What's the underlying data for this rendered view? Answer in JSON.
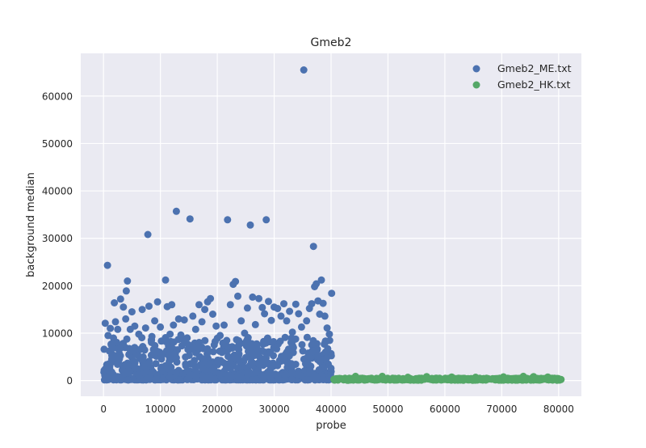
{
  "chart_data": {
    "type": "scatter",
    "title": "Gmeb2",
    "xlabel": "probe",
    "ylabel": "background median",
    "xlim": [
      -4000,
      84000
    ],
    "ylim": [
      -3300,
      69000
    ],
    "xticks": [
      0,
      10000,
      20000,
      30000,
      40000,
      50000,
      60000,
      70000,
      80000
    ],
    "yticks": [
      0,
      10000,
      20000,
      30000,
      40000,
      50000,
      60000
    ],
    "grid": true,
    "legend_position": "top-right",
    "background": "#eaeaf2",
    "series": [
      {
        "name": "Gmeb2_ME.txt",
        "color": "#4c72b0",
        "x_range": [
          0,
          40200
        ],
        "points": [
          [
            100,
            6600
          ],
          [
            300,
            12100
          ],
          [
            700,
            24300
          ],
          [
            800,
            9500
          ],
          [
            1200,
            11000
          ],
          [
            1500,
            7800
          ],
          [
            1900,
            16400
          ],
          [
            2100,
            12400
          ],
          [
            2500,
            10800
          ],
          [
            3000,
            17200
          ],
          [
            3500,
            15500
          ],
          [
            3900,
            13000
          ],
          [
            4000,
            18900
          ],
          [
            4200,
            21000
          ],
          [
            4700,
            10800
          ],
          [
            5000,
            14500
          ],
          [
            5500,
            11500
          ],
          [
            6200,
            9800
          ],
          [
            6800,
            15000
          ],
          [
            7400,
            11100
          ],
          [
            7800,
            30800
          ],
          [
            8000,
            15700
          ],
          [
            8500,
            9300
          ],
          [
            9000,
            12600
          ],
          [
            9500,
            16600
          ],
          [
            10000,
            11300
          ],
          [
            10900,
            21200
          ],
          [
            11200,
            15600
          ],
          [
            11700,
            9800
          ],
          [
            12000,
            16000
          ],
          [
            12300,
            11700
          ],
          [
            12800,
            35700
          ],
          [
            13200,
            13000
          ],
          [
            13600,
            9600
          ],
          [
            14200,
            12800
          ],
          [
            14700,
            9000
          ],
          [
            15200,
            34100
          ],
          [
            15700,
            13600
          ],
          [
            16200,
            10800
          ],
          [
            16800,
            16000
          ],
          [
            17300,
            12400
          ],
          [
            17800,
            15000
          ],
          [
            18300,
            16600
          ],
          [
            18800,
            17300
          ],
          [
            19200,
            14000
          ],
          [
            19800,
            11500
          ],
          [
            20500,
            9500
          ],
          [
            21200,
            11700
          ],
          [
            21800,
            33900
          ],
          [
            22300,
            16000
          ],
          [
            22800,
            20300
          ],
          [
            23200,
            20900
          ],
          [
            23600,
            17800
          ],
          [
            24200,
            12600
          ],
          [
            24800,
            10000
          ],
          [
            25300,
            15300
          ],
          [
            25800,
            32800
          ],
          [
            26200,
            17600
          ],
          [
            26700,
            11800
          ],
          [
            27300,
            17300
          ],
          [
            27900,
            15400
          ],
          [
            28300,
            14100
          ],
          [
            28600,
            33900
          ],
          [
            29000,
            16700
          ],
          [
            29500,
            12700
          ],
          [
            30000,
            15500
          ],
          [
            30600,
            15200
          ],
          [
            31200,
            13600
          ],
          [
            31700,
            16200
          ],
          [
            32200,
            12600
          ],
          [
            32700,
            14600
          ],
          [
            33200,
            10200
          ],
          [
            33800,
            16100
          ],
          [
            34300,
            14100
          ],
          [
            34800,
            11300
          ],
          [
            35200,
            65500
          ],
          [
            35700,
            12600
          ],
          [
            36200,
            15200
          ],
          [
            36600,
            16200
          ],
          [
            36900,
            28300
          ],
          [
            37100,
            19800
          ],
          [
            37400,
            20400
          ],
          [
            37700,
            16800
          ],
          [
            38000,
            14000
          ],
          [
            38300,
            21200
          ],
          [
            38600,
            16300
          ],
          [
            38900,
            13600
          ],
          [
            39300,
            11100
          ],
          [
            39700,
            9800
          ],
          [
            40100,
            18400
          ]
        ]
      },
      {
        "name": "Gmeb2_HK.txt",
        "color": "#55a868",
        "x_range": [
          40500,
          80600
        ],
        "points": [
          [
            44300,
            900
          ],
          [
            49000,
            900
          ],
          [
            53500,
            700
          ],
          [
            56800,
            850
          ],
          [
            61200,
            750
          ],
          [
            65400,
            700
          ],
          [
            70300,
            800
          ],
          [
            73800,
            900
          ],
          [
            75600,
            850
          ],
          [
            78100,
            750
          ]
        ]
      }
    ]
  }
}
